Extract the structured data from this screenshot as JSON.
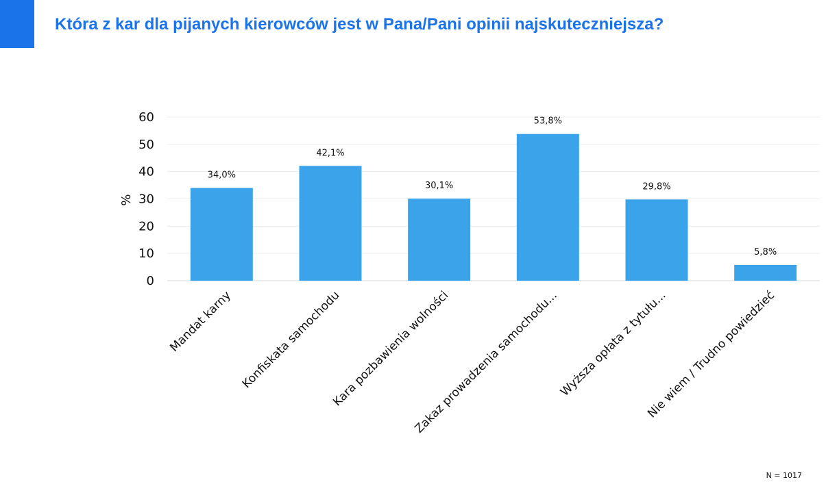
{
  "page": {
    "title": "Która z kar dla pijanych kierowców jest w Pana/Pani opinii najskuteczniejsza?",
    "note": "N = 1017",
    "accent_color": "#1a73e8"
  },
  "chart_data": {
    "type": "bar",
    "title": "",
    "xlabel": "",
    "ylabel": "%",
    "ylim": [
      0,
      60
    ],
    "yticks": [
      0,
      10,
      20,
      30,
      40,
      50,
      60
    ],
    "grid": true,
    "bar_color": "#3aa3ea",
    "categories": [
      "Mandat karny",
      "Konfiskata samochodu",
      "Kara pozbawienia wolności",
      "Zakaz prowadzenia samochodu...",
      "Wyższa opłata z tytułu...",
      "Nie wiem / Trudno powiedzieć"
    ],
    "values": [
      34.0,
      42.1,
      30.1,
      53.8,
      29.8,
      5.8
    ],
    "data_labels": [
      "34,0%",
      "42,1%",
      "30,1%",
      "53,8%",
      "29,8%",
      "5,8%"
    ]
  }
}
